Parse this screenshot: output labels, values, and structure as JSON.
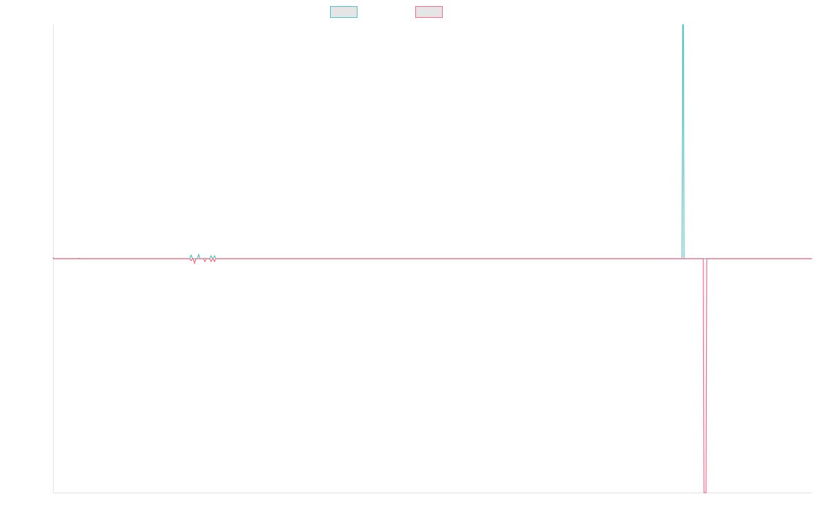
{
  "chart_data": {
    "type": "line",
    "title": "",
    "xlabel": "",
    "ylabel": "",
    "xlim": [
      0,
      1104
    ],
    "ylim": [
      -1,
      1
    ],
    "grid": false,
    "legend": "top-center",
    "series": [
      {
        "color": "#4bc0c0",
        "points": [
          [
            0,
            0.005
          ],
          [
            2,
            0
          ],
          [
            36,
            0
          ],
          [
            38,
            0.002
          ],
          [
            40,
            0
          ],
          [
            199,
            0
          ],
          [
            201,
            0.015
          ],
          [
            203,
            0
          ],
          [
            210,
            0
          ],
          [
            212,
            0.018
          ],
          [
            214,
            0
          ],
          [
            219,
            0
          ],
          [
            221,
            0.003
          ],
          [
            223,
            0
          ],
          [
            228,
            0
          ],
          [
            230,
            0.012
          ],
          [
            232,
            0
          ],
          [
            233,
            0
          ],
          [
            235,
            0.012
          ],
          [
            237,
            0
          ],
          [
            915,
            0
          ],
          [
            916,
            1
          ],
          [
            917,
            1
          ],
          [
            918,
            0
          ],
          [
            1104,
            0
          ]
        ]
      },
      {
        "color": "#ff6384",
        "points": [
          [
            0,
            0
          ],
          [
            199,
            0
          ],
          [
            201,
            -0.008
          ],
          [
            203,
            0
          ],
          [
            204,
            0
          ],
          [
            206,
            -0.02
          ],
          [
            208,
            0
          ],
          [
            219,
            0
          ],
          [
            221,
            -0.012
          ],
          [
            223,
            0
          ],
          [
            228,
            0
          ],
          [
            230,
            -0.012
          ],
          [
            232,
            0
          ],
          [
            233,
            0
          ],
          [
            235,
            -0.012
          ],
          [
            237,
            0
          ],
          [
            946,
            0
          ],
          [
            947,
            -1
          ],
          [
            950,
            -1
          ],
          [
            951,
            0
          ],
          [
            1104,
            0
          ]
        ]
      }
    ]
  }
}
